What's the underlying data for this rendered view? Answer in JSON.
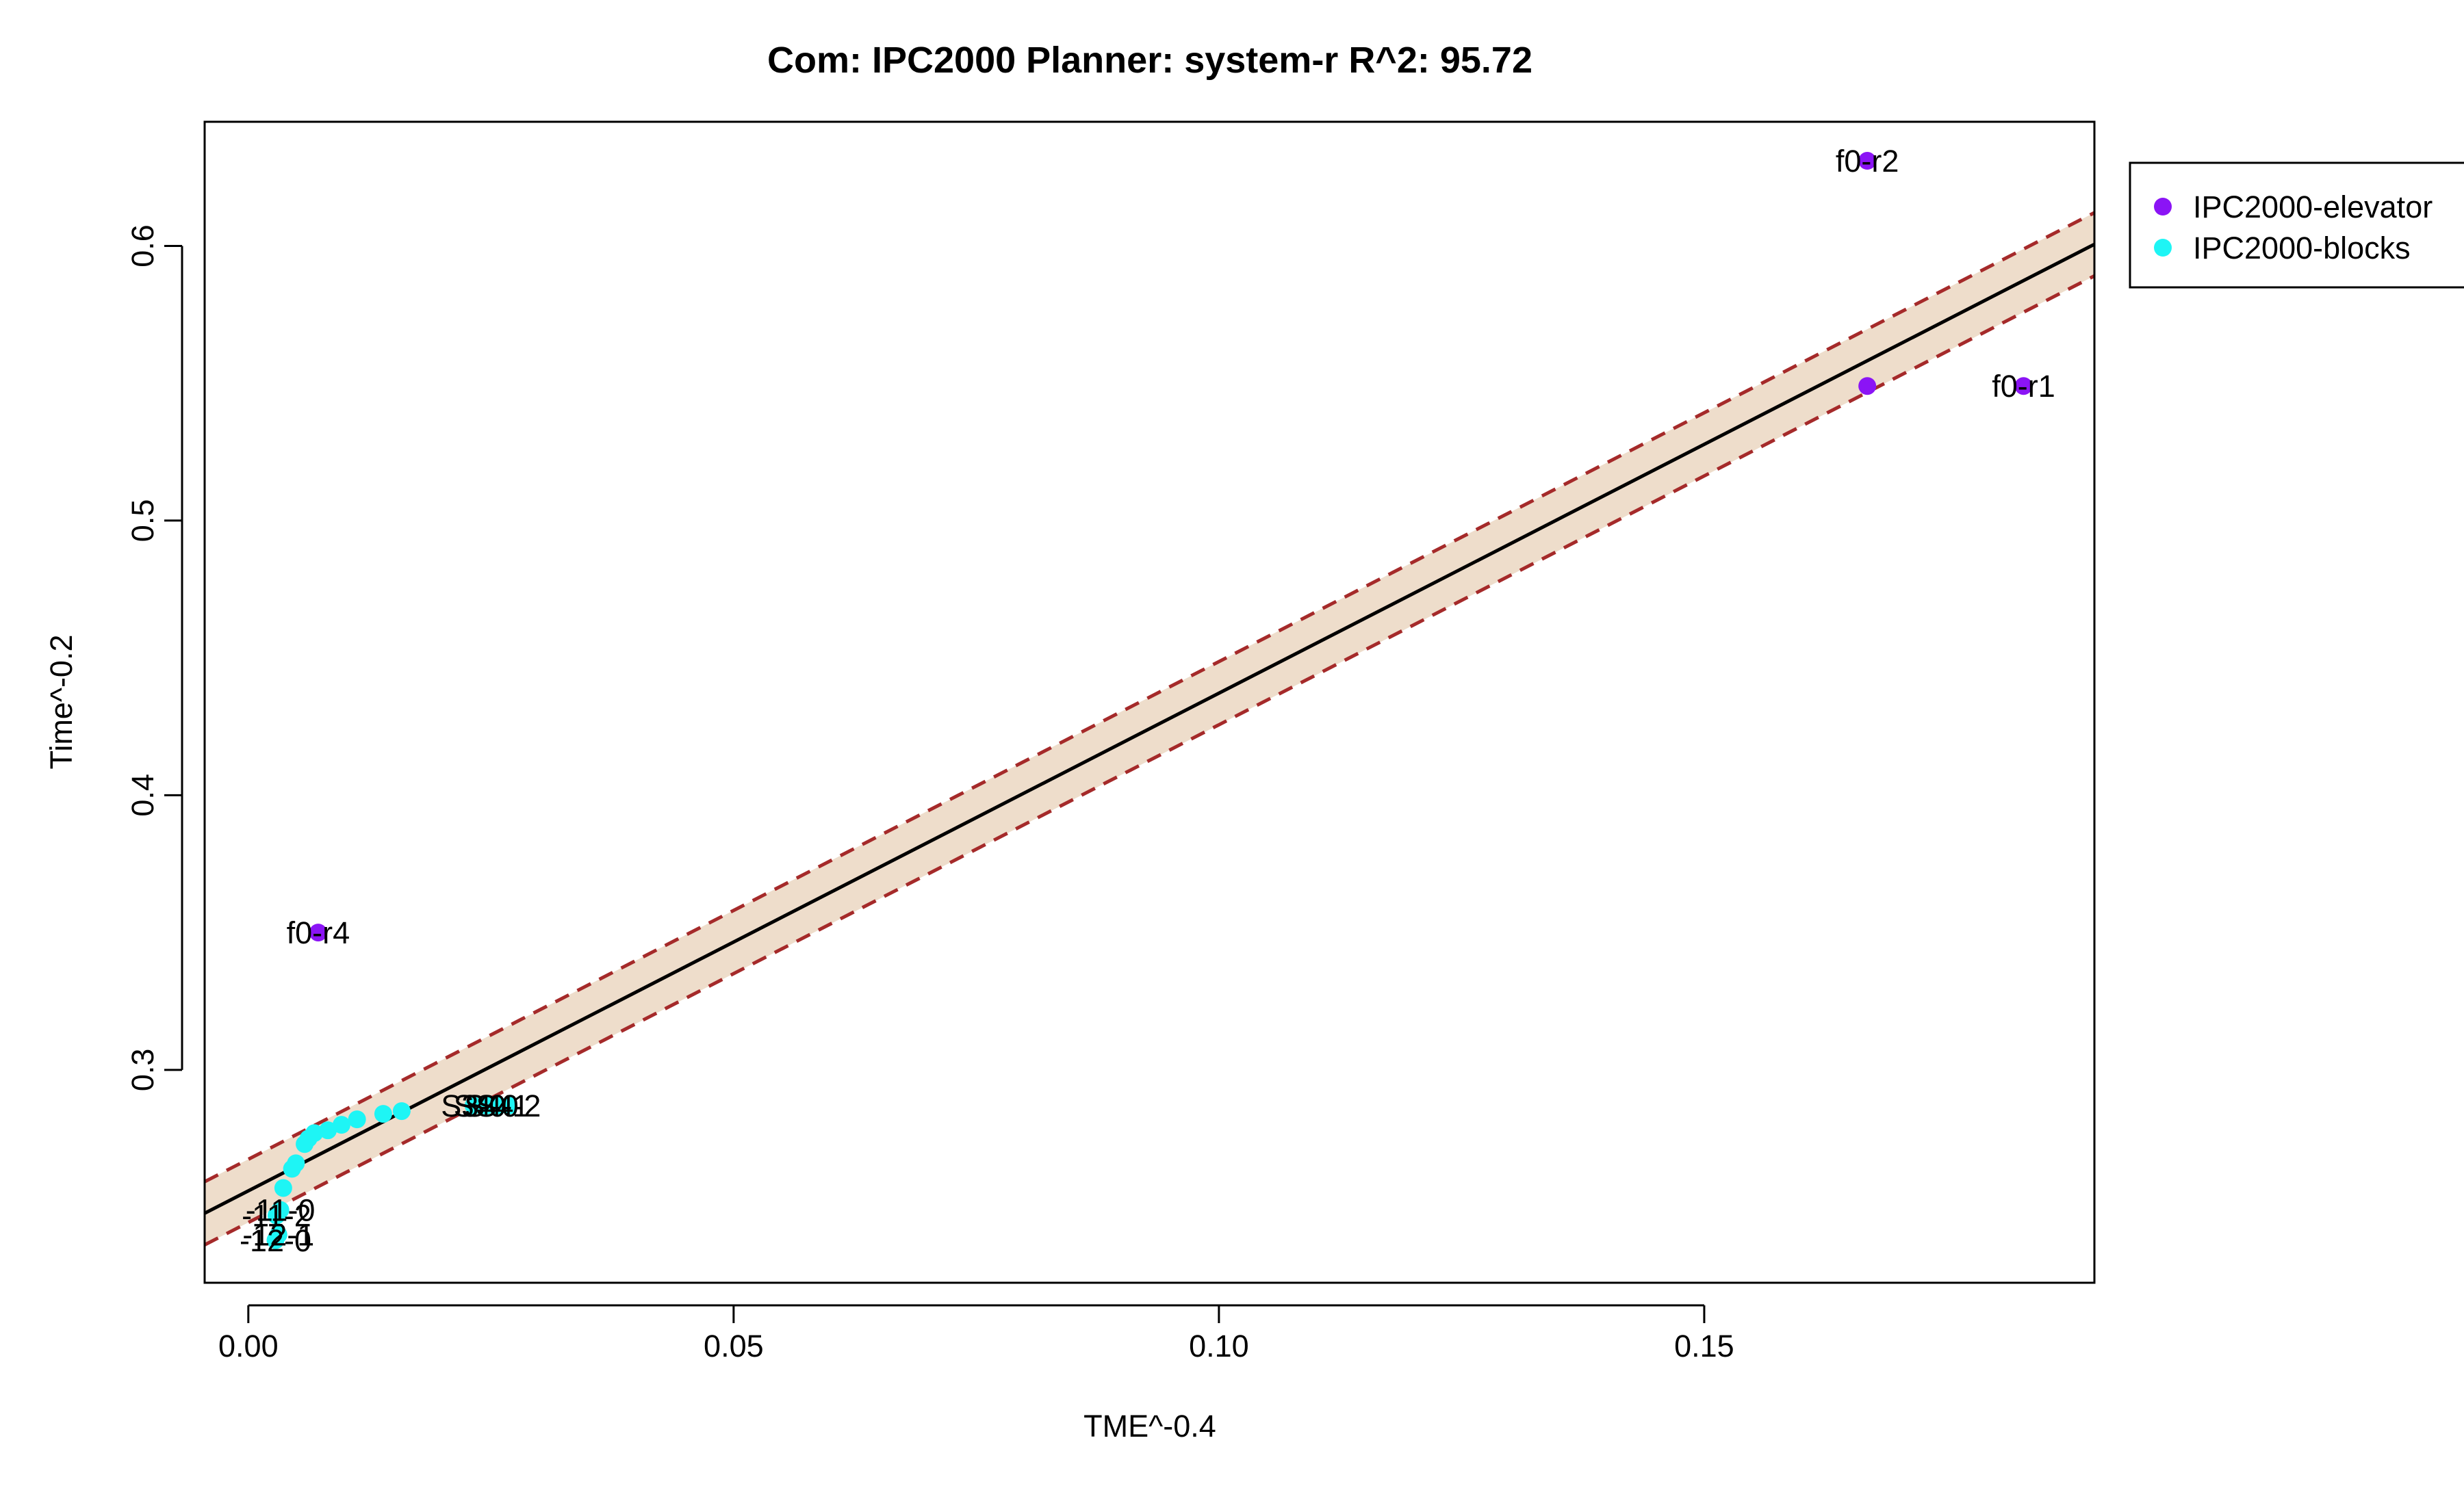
{
  "chart_data": {
    "type": "scatter",
    "title": "Com: IPC2000 Planner: system-r R^2: 95.72",
    "xlabel": "TME^-0.4",
    "ylabel": "Time^-0.2",
    "xlim": [
      -0.0045,
      0.1902
    ],
    "ylim": [
      0.2225,
      0.6452
    ],
    "x_ticks": [
      {
        "value": 0.0,
        "label": "0.00"
      },
      {
        "value": 0.05,
        "label": "0.05"
      },
      {
        "value": 0.1,
        "label": "0.10"
      },
      {
        "value": 0.15,
        "label": "0.15"
      }
    ],
    "y_ticks": [
      {
        "value": 0.3,
        "label": "0.3"
      },
      {
        "value": 0.4,
        "label": "0.4"
      },
      {
        "value": 0.5,
        "label": "0.5"
      },
      {
        "value": 0.6,
        "label": "0.6"
      }
    ],
    "grid": false,
    "legend": {
      "position": "top-right, outside plot",
      "entries": [
        {
          "label": "IPC2000-elevator",
          "color": "#8B14F5"
        },
        {
          "label": "IPC2000-blocks",
          "color": "#1EF5F5"
        }
      ]
    },
    "fit": {
      "line": [
        [
          -0.0045,
          0.2478
        ],
        [
          0.1902,
          0.6006
        ]
      ],
      "upper": [
        [
          -0.0045,
          0.2593
        ],
        [
          0.1902,
          0.6121
        ]
      ],
      "lower": [
        [
          -0.0045,
          0.2363
        ],
        [
          0.1902,
          0.5891
        ]
      ],
      "line_color": "#000000",
      "band_color": "#A52A2A",
      "fill_color": "#EEDDCB"
    },
    "series": [
      {
        "name": "IPC2000-elevator",
        "color": "#8B14F5",
        "points": [
          {
            "x": 0.1668,
            "y": 0.631,
            "label": "f0-r2"
          },
          {
            "x": 0.1668,
            "y": 0.549,
            "label": ""
          },
          {
            "x": 0.1829,
            "y": 0.549,
            "label": "f0-r1"
          },
          {
            "x": 0.0072,
            "y": 0.35,
            "label": "f0-r4"
          }
        ]
      },
      {
        "name": "IPC2000-blocks",
        "color": "#1EF5F5",
        "points": [
          {
            "x": 0.0028,
            "y": 0.238,
            "label": "-12-0"
          },
          {
            "x": 0.0031,
            "y": 0.24,
            "label": "-12-1"
          },
          {
            "x": 0.0029,
            "y": 0.247,
            "label": "-11-2"
          },
          {
            "x": 0.0033,
            "y": 0.249,
            "label": "-11-0"
          },
          {
            "x": 0.0036,
            "y": 0.257,
            "label": ""
          },
          {
            "x": 0.0045,
            "y": 0.264,
            "label": ""
          },
          {
            "x": 0.0049,
            "y": 0.266,
            "label": ""
          },
          {
            "x": 0.0058,
            "y": 0.273,
            "label": ""
          },
          {
            "x": 0.0062,
            "y": 0.275,
            "label": ""
          },
          {
            "x": 0.0068,
            "y": 0.277,
            "label": ""
          },
          {
            "x": 0.0082,
            "y": 0.278,
            "label": ""
          },
          {
            "x": 0.0096,
            "y": 0.28,
            "label": ""
          },
          {
            "x": 0.0112,
            "y": 0.282,
            "label": ""
          },
          {
            "x": 0.0139,
            "y": 0.284,
            "label": ""
          },
          {
            "x": 0.0158,
            "y": 0.285,
            "label": ""
          },
          {
            "x": 0.0232,
            "y": 0.287,
            "label": "S3-0"
          },
          {
            "x": 0.0245,
            "y": 0.287,
            "label": "S4-0"
          },
          {
            "x": 0.0256,
            "y": 0.287,
            "label": "S4-1"
          },
          {
            "x": 0.0268,
            "y": 0.287,
            "label": "S4-2"
          }
        ]
      }
    ]
  }
}
